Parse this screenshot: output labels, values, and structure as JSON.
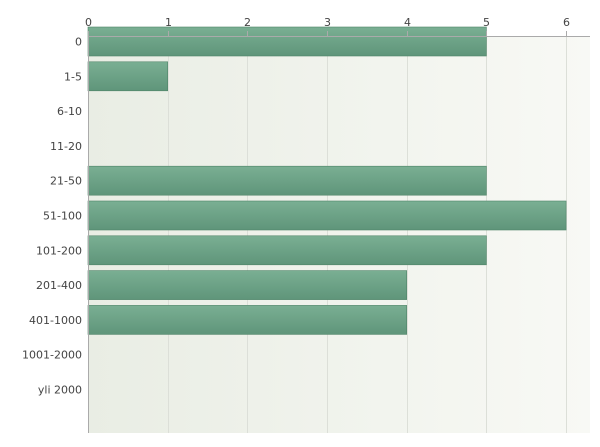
{
  "chart_data": {
    "type": "bar",
    "orientation": "horizontal",
    "categories": [
      "0",
      "1-5",
      "6-10",
      "11-20",
      "21-50",
      "51-100",
      "101-200",
      "201-400",
      "401-1000",
      "1001-2000",
      "yli 2000"
    ],
    "values": [
      5,
      1,
      0,
      0,
      5,
      6,
      5,
      4,
      4,
      0,
      0
    ],
    "x_ticks": [
      "0",
      "1",
      "2",
      "3",
      "4",
      "5",
      "6"
    ],
    "xlim": [
      0,
      6.3
    ],
    "x_axis_position": "top",
    "grid": true,
    "legend": "none",
    "title": "",
    "xlabel": "",
    "ylabel": ""
  },
  "colors": {
    "bar_fill_top": "#7aaf93",
    "bar_fill_bottom": "#5f957a",
    "bar_stroke": "#4f8468",
    "plot_bg_left": "#e9ede4",
    "plot_bg_right": "#f8f9f5",
    "grid": "#dcdfd8",
    "axis": "#aaaaaa"
  }
}
